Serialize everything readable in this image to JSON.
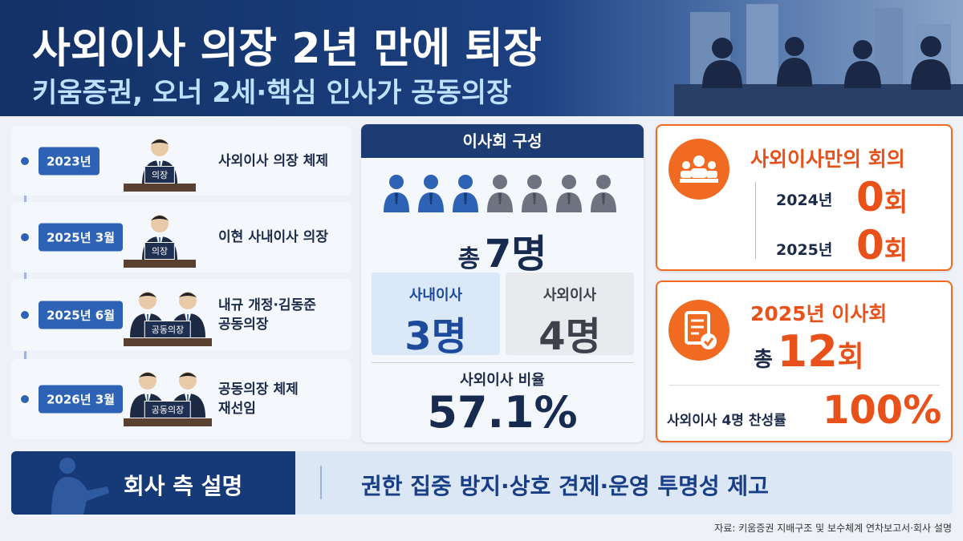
{
  "header": {
    "title": "사외이사 의장 2년 만에 퇴장",
    "subtitle": "키움증권, 오너 2세·핵심 인사가 공동의장"
  },
  "timeline": [
    {
      "date": "2023년",
      "badge": "의장",
      "text": [
        "사외이사 의장 체제"
      ]
    },
    {
      "date": "2025년 3월",
      "badge": "의장",
      "text": [
        "이현 사내이사 의장"
      ]
    },
    {
      "date": "2025년 6월",
      "badge": "공동의장",
      "text": [
        "내규 개정·김동준",
        "공동의장"
      ]
    },
    {
      "date": "2026년 3월",
      "badge": "공동의장",
      "text": [
        "공동의장 체제",
        "재선임"
      ]
    }
  ],
  "board": {
    "heading": "이사회 구성",
    "total_prefix": "총",
    "total": "7명",
    "inside": {
      "label": "사내이사",
      "value": "3명"
    },
    "outside": {
      "label": "사외이사",
      "value": "4명"
    },
    "ratio_label": "사외이사 비율",
    "ratio": "57.1%"
  },
  "outside_meetings": {
    "heading": "사외이사만의 회의",
    "rows": [
      {
        "year": "2024년",
        "count": "0",
        "unit": "회"
      },
      {
        "year": "2025년",
        "count": "0",
        "unit": "회"
      }
    ]
  },
  "meetings_2025": {
    "heading": "2025년 이사회",
    "total_prefix": "총",
    "count": "12",
    "unit": "회",
    "approval_label": "사외이사 4명 찬성률",
    "approval": "100%"
  },
  "explanation": {
    "label": "회사 측 설명",
    "text": "권한 집중 방지·상호 견제·운영 투명성 제고"
  },
  "source": "자료: 키움증권 지배구조 및 보수체계 연차보고서·회사 설명"
}
